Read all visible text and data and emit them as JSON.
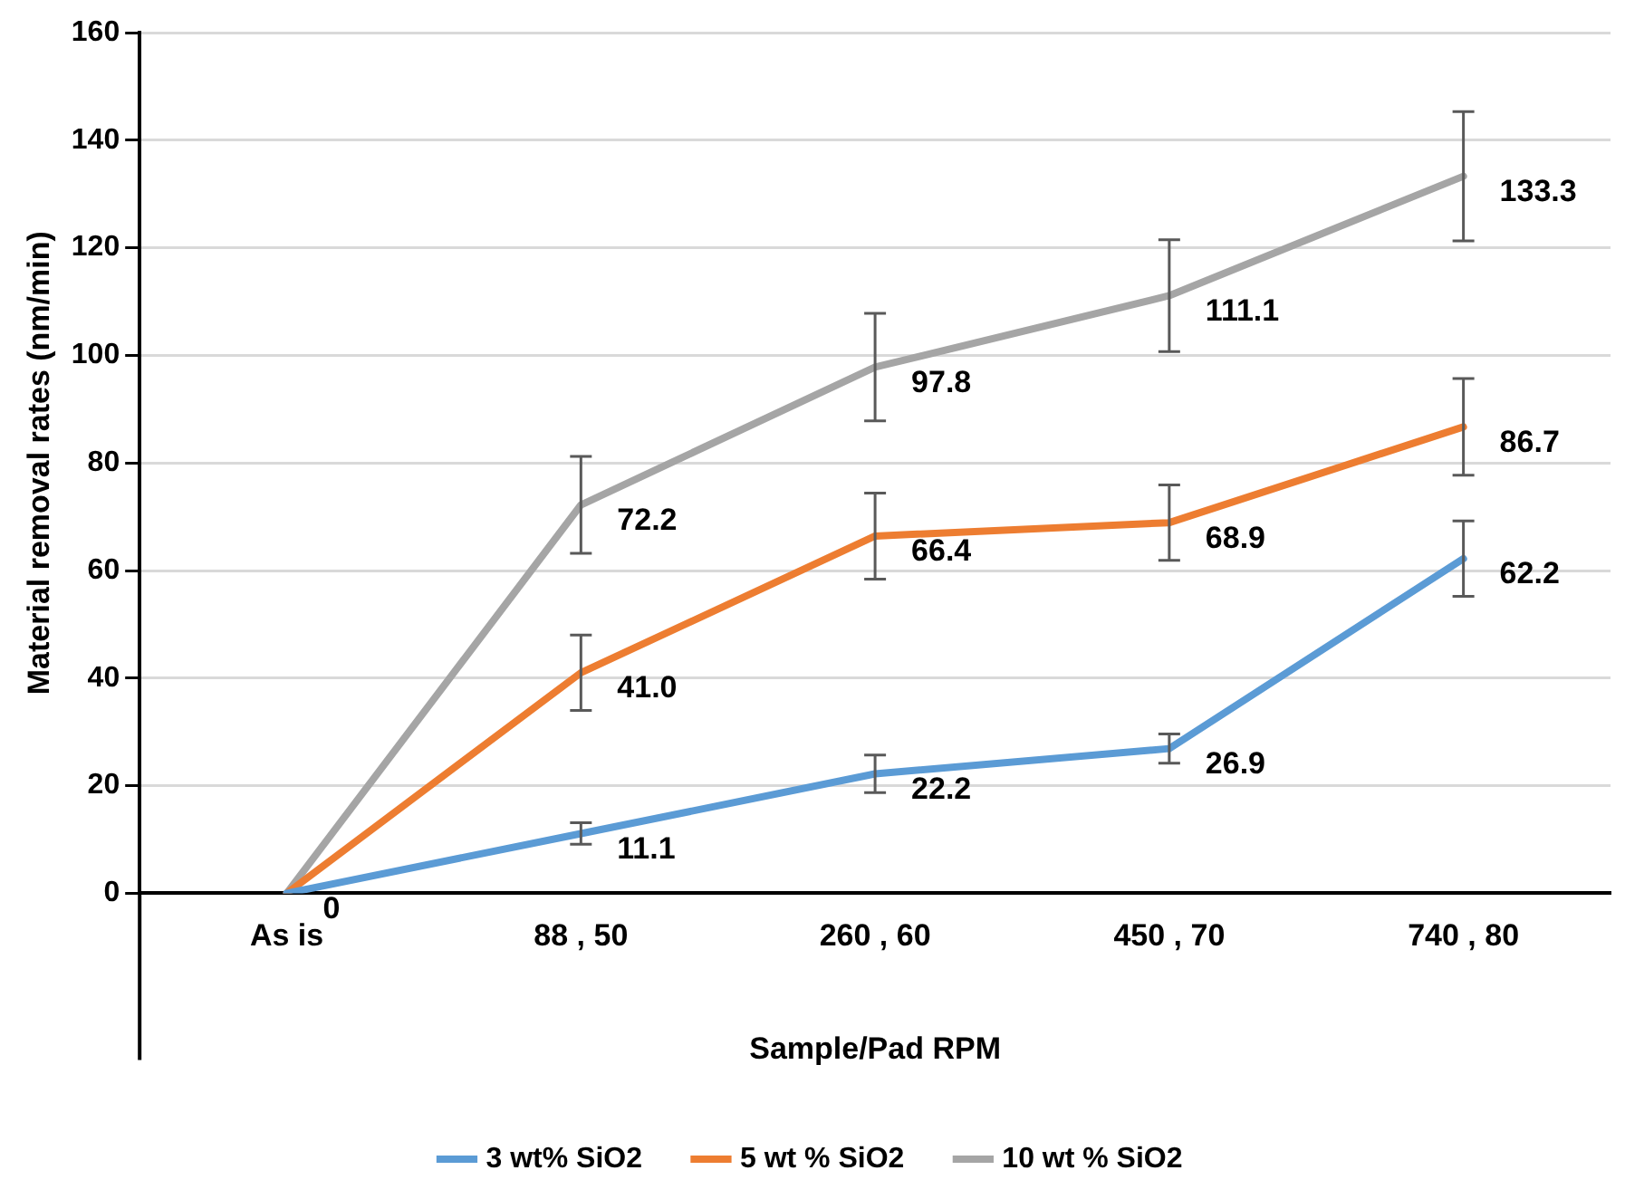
{
  "chart_data": {
    "type": "line",
    "xlabel": "Sample/Pad RPM",
    "ylabel": "Material removal rates (nm/min)",
    "categories": [
      "As is",
      "88 , 50",
      "260 , 60",
      "450 , 70",
      "740 , 80"
    ],
    "series": [
      {
        "name": "3 wt% SiO2",
        "color": "#5b9bd5",
        "values": [
          0,
          11.1,
          22.2,
          26.9,
          62.2
        ],
        "errors": [
          null,
          2,
          3.5,
          2.7,
          7
        ],
        "value_labels": [
          "0",
          "11.1",
          "22.2",
          "26.9",
          "62.2"
        ]
      },
      {
        "name": "5 wt % SiO2",
        "color": "#ed7d31",
        "values": [
          0,
          41.0,
          66.4,
          68.9,
          86.7
        ],
        "errors": [
          null,
          7,
          8,
          7,
          9
        ],
        "value_labels": [
          null,
          "41.0",
          "66.4",
          "68.9",
          "86.7"
        ]
      },
      {
        "name": "10 wt % SiO2",
        "color": "#a5a5a5",
        "values": [
          0,
          72.2,
          97.8,
          111.1,
          133.3
        ],
        "errors": [
          null,
          9,
          10,
          10.4,
          12
        ],
        "value_labels": [
          null,
          "72.2",
          "97.8",
          "111.1",
          "133.3"
        ]
      }
    ],
    "ylim": [
      0,
      160
    ],
    "yticks": [
      0,
      20,
      40,
      60,
      80,
      100,
      120,
      140,
      160
    ],
    "grid": "y",
    "legend": "bottom",
    "marker": "none",
    "line_style": "solid"
  }
}
